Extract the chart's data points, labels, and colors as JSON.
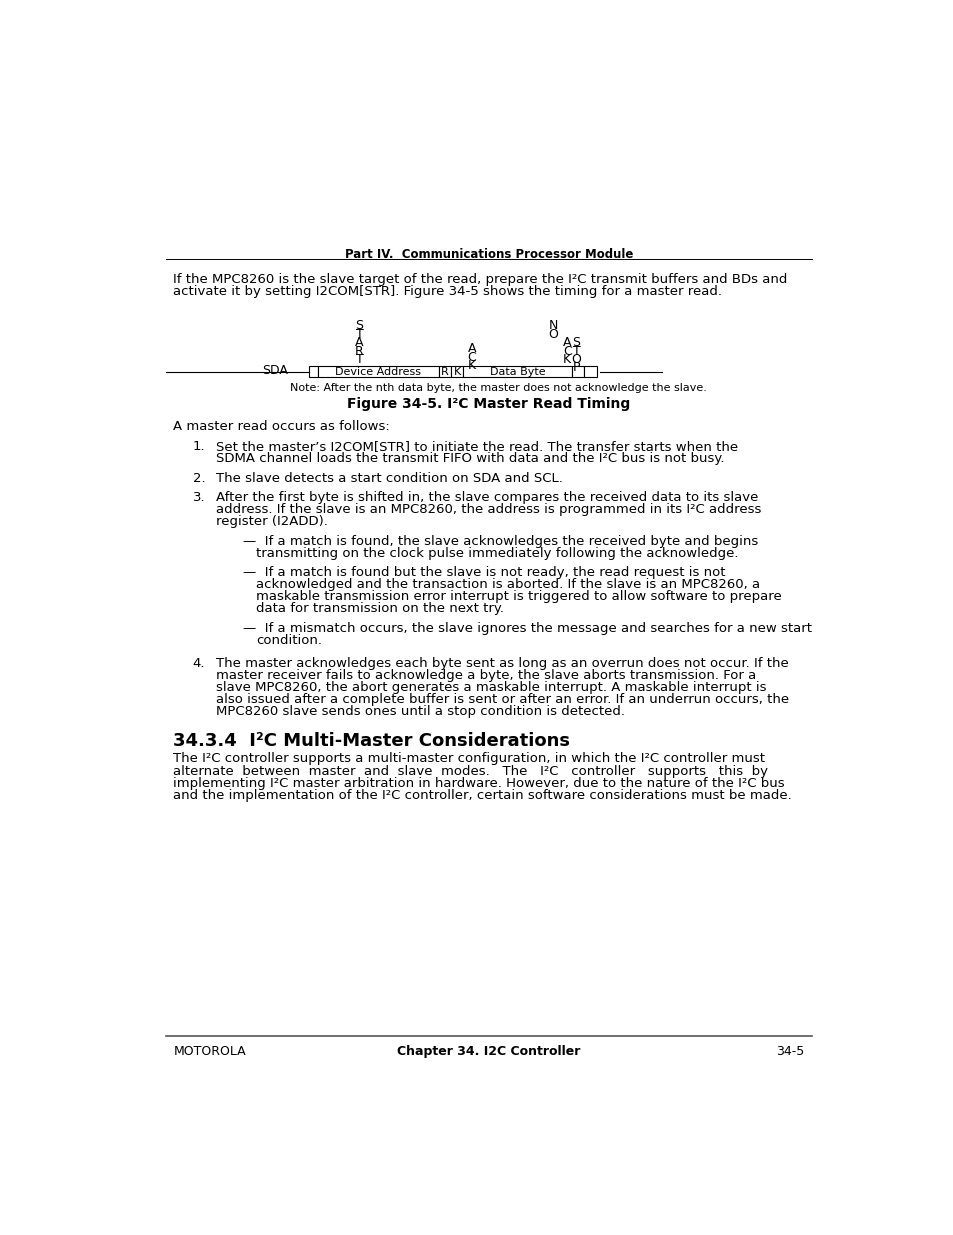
{
  "page_title": "Part IV.  Communications Processor Module",
  "intro_lines": [
    "If the MPC8260 is the slave target of the read, prepare the I²C transmit buffers and BDs and",
    "activate it by setting I2COM[STR]. Figure 34-5 shows the timing for a master read."
  ],
  "figure_caption": "Figure 34-5. I²C Master Read Timing",
  "figure_note": "Note: After the nth data byte, the master does not acknowledge the slave.",
  "section_heading": "34.3.4  I²C Multi-Master Considerations",
  "main_text": "A master read occurs as follows:",
  "item1_lines": [
    "Set the master’s I2COM[STR] to initiate the read. The transfer starts when the",
    "SDMA channel loads the transmit FIFO with data and the I²C bus is not busy."
  ],
  "item2_text": "The slave detects a start condition on SDA and SCL.",
  "item3_lines": [
    "After the first byte is shifted in, the slave compares the received data to its slave",
    "address. If the slave is an MPC8260, the address is programmed in its I²C address",
    "register (I2ADD)."
  ],
  "sub1_lines": [
    "—  If a match is found, the slave acknowledges the received byte and begins",
    "transmitting on the clock pulse immediately following the acknowledge."
  ],
  "sub2_lines": [
    "—  If a match is found but the slave is not ready, the read request is not",
    "acknowledged and the transaction is aborted. If the slave is an MPC8260, a",
    "maskable transmission error interrupt is triggered to allow software to prepare",
    "data for transmission on the next try."
  ],
  "sub3_lines": [
    "—  If a mismatch occurs, the slave ignores the message and searches for a new start",
    "condition."
  ],
  "item4_lines": [
    "The master acknowledges each byte sent as long as an overrun does not occur. If the",
    "master receiver fails to acknowledge a byte, the slave aborts transmission. For a",
    "slave MPC8260, the abort generates a maskable interrupt. A maskable interrupt is",
    "also issued after a complete buffer is sent or after an error. If an underrun occurs, the",
    "MPC8260 slave sends ones until a stop condition is detected."
  ],
  "body_lines": [
    "The I²C controller supports a multi-master configuration, in which the I²C controller must",
    "alternate  between  master  and  slave  modes.   The   I²C   controller   supports   this  by",
    "implementing I²C master arbitration in hardware. However, due to the nature of the I²C bus",
    "and the implementation of the I²C controller, certain software considerations must be made."
  ],
  "footer_left": "MOTOROLA",
  "footer_center": "Chapter 34. I2C Controller",
  "footer_right": "34-5"
}
